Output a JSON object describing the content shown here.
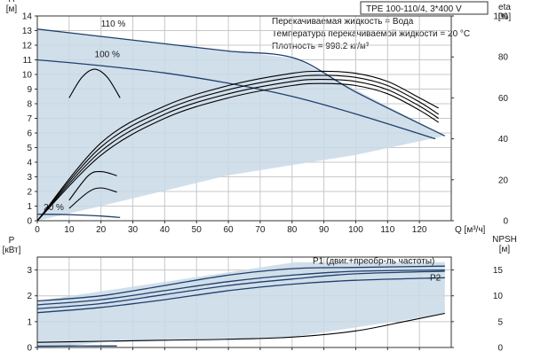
{
  "title_box": "TPE 100-110/4, 3*400 V",
  "notes": [
    "Перекачиваемая жидкость = Вода",
    "Температура перекачиваемой жидкости = 20 °C",
    "Плотность = 998.2 кг/м³"
  ],
  "chart_data": [
    {
      "type": "line",
      "title": "",
      "xlabel": "Q [м³/ч]",
      "xlim": [
        0,
        130
      ],
      "xticks": [
        0,
        10,
        20,
        30,
        40,
        50,
        60,
        70,
        80,
        90,
        100,
        110,
        120
      ],
      "ylabel_left": [
        "H",
        "[м]"
      ],
      "ylim_left": [
        0,
        14
      ],
      "yticks_left": [
        0,
        1,
        2,
        3,
        4,
        5,
        6,
        7,
        8,
        9,
        10,
        11,
        12,
        13,
        14
      ],
      "ylabel_right": [
        "eta",
        "[%]"
      ],
      "ylim_right": [
        0,
        100
      ],
      "yticks_right": [
        0,
        20,
        40,
        60,
        80,
        100
      ],
      "grid": true,
      "labels": [
        "110 %",
        "100 %",
        "20 %"
      ],
      "envelope": {
        "name": "operating-range",
        "color": "#c9d9e8",
        "upper": [
          [
            0,
            13.1
          ],
          [
            81,
            11.1
          ],
          [
            128,
            5.8
          ]
        ],
        "lower": [
          [
            128,
            5.8
          ],
          [
            100,
            4.5
          ],
          [
            60,
            3.1
          ],
          [
            20,
            1.0
          ],
          [
            0,
            0
          ]
        ]
      },
      "series": [
        {
          "name": "110 %",
          "axis": "left",
          "color": "#1f3f6b",
          "x": [
            0,
            20,
            40,
            60,
            81,
            100,
            128
          ],
          "y": [
            13.1,
            12.6,
            12.1,
            11.6,
            11.1,
            8.8,
            5.8
          ]
        },
        {
          "name": "100 %",
          "axis": "left",
          "color": "#1f3f6b",
          "x": [
            0,
            20,
            40,
            60,
            80,
            100,
            125
          ],
          "y": [
            11.0,
            10.6,
            10.1,
            9.4,
            8.5,
            7.3,
            5.6
          ]
        },
        {
          "name": "20 %",
          "axis": "left",
          "color": "#1f3f6b",
          "x": [
            0,
            10,
            20,
            26
          ],
          "y": [
            0.45,
            0.42,
            0.32,
            0.22
          ]
        },
        {
          "name": "",
          "axis": "right",
          "color": "#000000",
          "x": [
            0,
            20,
            40,
            60,
            80,
            90,
            100,
            110,
            120,
            126
          ],
          "y": [
            0,
            38,
            56,
            66,
            72,
            73,
            72,
            68,
            60,
            55
          ]
        },
        {
          "name": "",
          "axis": "right",
          "color": "#000000",
          "x": [
            0,
            20,
            40,
            60,
            80,
            90,
            100,
            110,
            120,
            126
          ],
          "y": [
            0,
            36,
            54,
            64,
            70,
            71,
            70,
            66,
            58,
            52
          ]
        },
        {
          "name": "",
          "axis": "right",
          "color": "#000000",
          "x": [
            0,
            20,
            40,
            60,
            80,
            90,
            100,
            110,
            120,
            126
          ],
          "y": [
            0,
            34,
            52,
            62,
            68,
            69,
            68,
            64,
            56,
            50
          ]
        },
        {
          "name": "",
          "axis": "right",
          "color": "#000000",
          "x": [
            0,
            20,
            40,
            60,
            80,
            90,
            100,
            110,
            120,
            126
          ],
          "y": [
            0,
            32,
            50,
            60,
            66,
            67,
            66,
            62,
            54,
            48
          ]
        },
        {
          "name": "",
          "axis": "right",
          "color": "#000000",
          "x": [
            10,
            14,
            18,
            22,
            26
          ],
          "y": [
            60,
            70,
            74,
            70,
            60
          ]
        },
        {
          "name": "",
          "axis": "right",
          "color": "#000000",
          "x": [
            10,
            16,
            20,
            25
          ],
          "y": [
            10,
            22,
            24,
            22
          ]
        },
        {
          "name": "",
          "axis": "right",
          "color": "#000000",
          "x": [
            10,
            16,
            20,
            25
          ],
          "y": [
            6,
            14,
            16,
            14
          ]
        }
      ]
    },
    {
      "type": "line",
      "title": "",
      "xlabel": "",
      "xlim": [
        0,
        130
      ],
      "ylabel_left": [
        "P",
        "[кВт]"
      ],
      "ylim_left": [
        0,
        3.5
      ],
      "yticks_left": [
        0,
        1,
        2,
        3
      ],
      "ylabel_right": [
        "NPSH",
        "[м]"
      ],
      "ylim_right": [
        0,
        17.5
      ],
      "yticks_right": [
        0,
        5,
        10,
        15
      ],
      "grid": true,
      "labels": [
        "P1 (двиг.+преобр-ль частоты)",
        "P2"
      ],
      "envelope": {
        "name": "operating-range",
        "color": "#c9d9e8",
        "upper": [
          [
            0,
            1.8
          ],
          [
            81,
            3.3
          ],
          [
            128,
            3.3
          ]
        ],
        "lower": [
          [
            128,
            1.3
          ],
          [
            80,
            0.4
          ],
          [
            20,
            0.2
          ],
          [
            5,
            0.0
          ],
          [
            0,
            0.0
          ]
        ]
      },
      "series": [
        {
          "name": "P1 (двиг.+преобр-ль частоты)",
          "axis": "left",
          "color": "#1f3f6b",
          "x": [
            0,
            20,
            40,
            60,
            80,
            100,
            128
          ],
          "y": [
            1.8,
            2.0,
            2.4,
            2.8,
            3.05,
            3.1,
            3.15
          ]
        },
        {
          "name": "",
          "axis": "left",
          "color": "#1f3f6b",
          "x": [
            0,
            20,
            40,
            60,
            80,
            100,
            128
          ],
          "y": [
            1.65,
            1.85,
            2.2,
            2.55,
            2.8,
            2.95,
            3.0
          ]
        },
        {
          "name": "",
          "axis": "left",
          "color": "#1f3f6b",
          "x": [
            0,
            20,
            40,
            60,
            80,
            100,
            128
          ],
          "y": [
            1.5,
            1.7,
            2.05,
            2.4,
            2.65,
            2.85,
            2.95
          ]
        },
        {
          "name": "P2",
          "axis": "left",
          "color": "#1f3f6b",
          "x": [
            0,
            20,
            40,
            60,
            80,
            100,
            128
          ],
          "y": [
            1.35,
            1.55,
            1.85,
            2.2,
            2.45,
            2.6,
            2.7
          ]
        },
        {
          "name": "",
          "axis": "left",
          "color": "#1f3f6b",
          "x": [
            0,
            10,
            20,
            25
          ],
          "y": [
            0.05,
            0.06,
            0.06,
            0.06
          ]
        },
        {
          "name": "",
          "axis": "right",
          "color": "#000000",
          "x": [
            0,
            20,
            40,
            60,
            80,
            100,
            115,
            128
          ],
          "y": [
            1.0,
            1.2,
            1.4,
            1.6,
            2.0,
            3.2,
            5.0,
            6.6
          ]
        }
      ]
    }
  ]
}
